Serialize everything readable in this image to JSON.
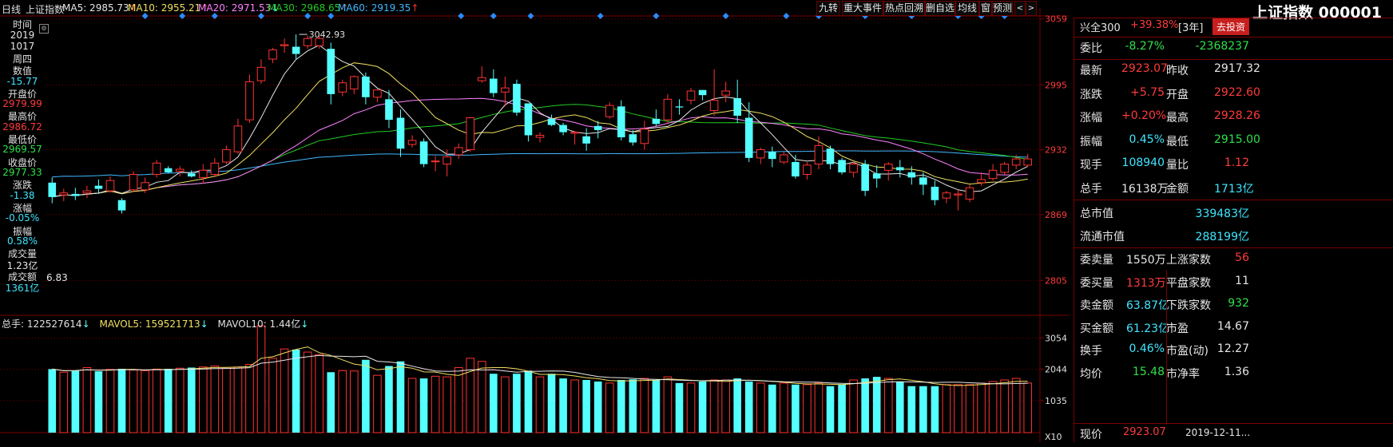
{
  "colors": {
    "up": "#ff3232",
    "down": "#54ffff",
    "ma5": "#e8e8e8",
    "ma10": "#f0e060",
    "ma20": "#ff80ff",
    "ma30": "#22cc22",
    "ma60": "#40b8ff",
    "grid": "#7a0000"
  },
  "topbar": {
    "period": "日线",
    "index_name": "上证指数",
    "ma5": "MA5: 2985.73",
    "ma10": "MA10: 2955.21",
    "ma20": "MA20: 2971.53",
    "ma30": "MA30: 2968.65",
    "ma60": "MA60: 2919.35",
    "arrow_up": "↑",
    "arrow_down": "↓"
  },
  "toolbar": [
    "九转",
    "重大事件",
    "热点回溯",
    "删自选",
    "均线",
    "窗",
    "预测"
  ],
  "left_panel": {
    "time_label": "时间",
    "year": "2019",
    "date": "1017",
    "weekday": "周四",
    "value_label": "数值",
    "value": "-15.77",
    "open_label": "开盘价",
    "open": "2979.99",
    "high_label": "最高价",
    "high": "2986.72",
    "low_label": "最低价",
    "low": "2969.57",
    "close_label": "收盘价",
    "close": "2977.33",
    "change_label": "涨跌",
    "change": "-1.38",
    "pct_label": "涨幅",
    "pct": "-0.05%",
    "amp_label": "振幅",
    "amp": "0.58%",
    "vol_label": "成交量",
    "vol": "1.23亿",
    "amt_label": "成交额",
    "amt": "1361亿",
    "low_mark": "6.83"
  },
  "price_axis": [
    "3059",
    "2995",
    "2932",
    "2869",
    "2805"
  ],
  "max_annotation": "3042.93",
  "volume_header": {
    "total": "总手: 122527614",
    "mavol5": "MAVOL5: 159521713",
    "mavol10": "MAVOL10: 1.44亿",
    "arrow": "↓"
  },
  "volume_axis": [
    "3054",
    "2044",
    "1035"
  ],
  "volume_unit": "X10",
  "title": "上证指数 000001",
  "right_panel": {
    "hs300": {
      "label": "兴全300",
      "value": "+39.38%",
      "period": "[3年]",
      "button": "去投资"
    },
    "weibi": {
      "label": "委比",
      "pct": "-8.27%",
      "value": "-2368237"
    },
    "rows": [
      {
        "k1": "最新",
        "v1": "2923.07",
        "c1": "red",
        "k2": "昨收",
        "v2": "2917.32",
        "c2": "white"
      },
      {
        "k1": "涨跌",
        "v1": "+5.75",
        "c1": "red",
        "k2": "开盘",
        "v2": "2922.60",
        "c2": "red"
      },
      {
        "k1": "涨幅",
        "v1": "+0.20%",
        "c1": "red",
        "k2": "最高",
        "v2": "2928.26",
        "c2": "red"
      },
      {
        "k1": "振幅",
        "v1": "0.45%",
        "c1": "cyan",
        "k2": "最低",
        "v2": "2915.00",
        "c2": "green"
      },
      {
        "k1": "现手",
        "v1": "108940",
        "c1": "cyan",
        "k2": "量比",
        "v2": "1.12",
        "c2": "red"
      },
      {
        "k1": "总手",
        "v1": "16138万",
        "c1": "white",
        "k2": "金额",
        "v2": "1713亿",
        "c2": "cyan"
      }
    ],
    "mcap": {
      "label": "总市值",
      "value": "339483亿"
    },
    "float_mcap": {
      "label": "流通市值",
      "value": "288199亿"
    },
    "rows2": [
      {
        "k1": "委卖量",
        "v1": "1550万",
        "c1": "white",
        "k2": "上涨家数",
        "v2": "56",
        "c2": "red"
      },
      {
        "k1": "委买量",
        "v1": "1313万",
        "c1": "red",
        "k2": "平盘家数",
        "v2": "11",
        "c2": "white"
      },
      {
        "k1": "卖金额",
        "v1": "63.87亿",
        "c1": "cyan",
        "k2": "下跌家数",
        "v2": "932",
        "c2": "green"
      },
      {
        "k1": "买金额",
        "v1": "61.23亿",
        "c1": "cyan",
        "k2": "市盈",
        "v2": "14.67",
        "c2": "white"
      },
      {
        "k1": "换手",
        "v1": "0.46%",
        "c1": "cyan",
        "k2": "市盈(动)",
        "v2": "12.27",
        "c2": "white"
      },
      {
        "k1": "均价",
        "v1": "15.48",
        "c1": "green",
        "k2": "市净率",
        "v2": "1.36",
        "c2": "white"
      }
    ],
    "bottom": {
      "label": "现价",
      "value": "2923.07",
      "time": "2019-12-11..."
    }
  },
  "chart_data": {
    "type": "candlestick",
    "price_ticks": [
      3059,
      2995,
      2932,
      2869,
      2805
    ],
    "price_range": [
      2775,
      3065
    ],
    "candles": [
      [
        2900,
        2905,
        2880,
        2886
      ],
      [
        2888,
        2894,
        2882,
        2890
      ],
      [
        2889,
        2895,
        2883,
        2887
      ],
      [
        2890,
        2897,
        2885,
        2892
      ],
      [
        2897,
        2903,
        2889,
        2894
      ],
      [
        2892,
        2906,
        2890,
        2902
      ],
      [
        2883,
        2885,
        2870,
        2873
      ],
      [
        2893,
        2911,
        2891,
        2908
      ],
      [
        2893,
        2905,
        2890,
        2900
      ],
      [
        2908,
        2922,
        2905,
        2919
      ],
      [
        2914,
        2916,
        2909,
        2910
      ],
      [
        2911,
        2916,
        2906,
        2913
      ],
      [
        2909,
        2912,
        2905,
        2906
      ],
      [
        2905,
        2918,
        2899,
        2912
      ],
      [
        2908,
        2924,
        2905,
        2919
      ],
      [
        2920,
        2936,
        2918,
        2932
      ],
      [
        2930,
        2962,
        2928,
        2955
      ],
      [
        2961,
        3005,
        2958,
        2998
      ],
      [
        2999,
        3020,
        2996,
        3012
      ],
      [
        3020,
        3031,
        3016,
        3029
      ],
      [
        3033,
        3040,
        3026,
        3034
      ],
      [
        3032,
        3044,
        3020,
        3025
      ],
      [
        3033,
        3043,
        3030,
        3040
      ],
      [
        3033,
        3043,
        3030,
        3040
      ],
      [
        3030,
        3036,
        2976,
        2986
      ],
      [
        2988,
        3000,
        2984,
        2997
      ],
      [
        2991,
        3004,
        2986,
        3003
      ],
      [
        3003,
        3007,
        2976,
        2983
      ],
      [
        2983,
        2991,
        2978,
        2990
      ],
      [
        2981,
        2990,
        2953,
        2961
      ],
      [
        2963,
        2971,
        2925,
        2933
      ],
      [
        2937,
        2946,
        2934,
        2941
      ],
      [
        2940,
        2943,
        2915,
        2918
      ],
      [
        2921,
        2926,
        2911,
        2921
      ],
      [
        2918,
        2932,
        2906,
        2925
      ],
      [
        2927,
        2938,
        2923,
        2934
      ],
      [
        2932,
        2964,
        2930,
        2963
      ],
      [
        2999,
        3013,
        2997,
        3002
      ],
      [
        3001,
        3010,
        2983,
        2987
      ],
      [
        2988,
        3003,
        2974,
        2992
      ],
      [
        2996,
        3000,
        2965,
        2968
      ],
      [
        2977,
        2977,
        2940,
        2946
      ],
      [
        2944,
        2949,
        2939,
        2946
      ],
      [
        2962,
        2966,
        2955,
        2956
      ],
      [
        2956,
        2958,
        2946,
        2949
      ],
      [
        2948,
        2950,
        2937,
        2949
      ],
      [
        2945,
        2953,
        2931,
        2938
      ],
      [
        2955,
        2960,
        2943,
        2951
      ],
      [
        2964,
        2978,
        2962,
        2975
      ],
      [
        2974,
        2980,
        2941,
        2944
      ],
      [
        2947,
        2951,
        2936,
        2939
      ],
      [
        2938,
        2960,
        2932,
        2952
      ],
      [
        2962,
        2971,
        2955,
        2957
      ],
      [
        2961,
        2986,
        2957,
        2981
      ],
      [
        2974,
        2981,
        2966,
        2973
      ],
      [
        2980,
        2992,
        2976,
        2989
      ],
      [
        2990,
        2990,
        2980,
        2985
      ],
      [
        2970,
        3010,
        2965,
        2980
      ],
      [
        2985,
        2998,
        2978,
        2989
      ],
      [
        2982,
        3000,
        2958,
        2965
      ],
      [
        2963,
        2978,
        2920,
        2924
      ],
      [
        2924,
        2934,
        2918,
        2932
      ],
      [
        2930,
        2935,
        2915,
        2923
      ],
      [
        2920,
        2930,
        2918,
        2927
      ],
      [
        2920,
        2927,
        2904,
        2906
      ],
      [
        2908,
        2920,
        2903,
        2917
      ],
      [
        2918,
        2945,
        2913,
        2936
      ],
      [
        2933,
        2936,
        2913,
        2918
      ],
      [
        2922,
        2924,
        2908,
        2910
      ],
      [
        2910,
        2920,
        2905,
        2918
      ],
      [
        2918,
        2922,
        2887,
        2892
      ],
      [
        2909,
        2917,
        2895,
        2904
      ],
      [
        2912,
        2920,
        2902,
        2918
      ],
      [
        2915,
        2922,
        2905,
        2912
      ],
      [
        2910,
        2916,
        2898,
        2905
      ],
      [
        2905,
        2910,
        2888,
        2898
      ],
      [
        2896,
        2902,
        2878,
        2883
      ],
      [
        2885,
        2892,
        2880,
        2890
      ],
      [
        2888,
        2893,
        2873,
        2889
      ],
      [
        2884,
        2898,
        2881,
        2895
      ],
      [
        2900,
        2910,
        2897,
        2903
      ],
      [
        2904,
        2918,
        2902,
        2912
      ],
      [
        2910,
        2920,
        2908,
        2918
      ],
      [
        2917,
        2927,
        2913,
        2923
      ],
      [
        2917,
        2928,
        2915,
        2923
      ]
    ],
    "volume_ticks": [
      3054,
      2044,
      1035
    ],
    "volume_max": 3400,
    "volumes": [
      2050,
      1950,
      2010,
      2100,
      1980,
      2040,
      2060,
      2020,
      2000,
      2050,
      2060,
      2080,
      2100,
      2120,
      2150,
      2080,
      2120,
      2200,
      3450,
      2400,
      2700,
      2680,
      2600,
      2520,
      1950,
      2000,
      1990,
      2350,
      1850,
      2150,
      2300,
      1750,
      1750,
      1820,
      1800,
      2100,
      2400,
      2300,
      1900,
      1800,
      1900,
      2000,
      1800,
      1900,
      1750,
      1700,
      1700,
      1650,
      1600,
      1700,
      1720,
      1750,
      1700,
      1800,
      1600,
      1600,
      1650,
      1700,
      1700,
      1750,
      1650,
      1600,
      1550,
      1600,
      1550,
      1550,
      1600,
      1500,
      1550,
      1700,
      1750,
      1800,
      1750,
      1650,
      1500,
      1500,
      1500,
      1550,
      1550,
      1550,
      1600,
      1650,
      1700,
      1750,
      1600
    ]
  }
}
